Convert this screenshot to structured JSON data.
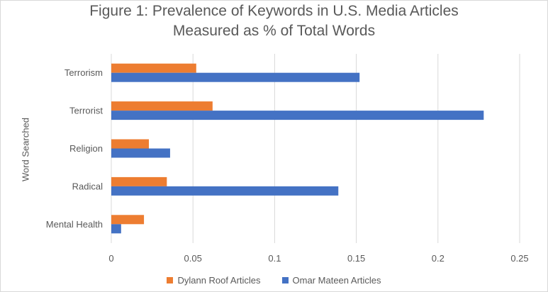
{
  "chart_data": {
    "type": "bar",
    "orientation": "horizontal",
    "title_lines": [
      "Figure 1: Prevalence of Keywords in U.S. Media Articles",
      "Measured as % of Total Words"
    ],
    "ylabel": "Word Searched",
    "xlabel": "",
    "categories": [
      "Terrorism",
      "Terrorist",
      "Religion",
      "Radical",
      "Mental Health"
    ],
    "series": [
      {
        "name": "Dylann Roof Articles",
        "color": "#ed7d31",
        "values": [
          0.052,
          0.062,
          0.023,
          0.034,
          0.02
        ]
      },
      {
        "name": "Omar Mateen Articles",
        "color": "#4472c4",
        "values": [
          0.152,
          0.228,
          0.036,
          0.139,
          0.006
        ]
      }
    ],
    "xlim": [
      0,
      0.25
    ],
    "xticks": [
      0,
      0.05,
      0.1,
      0.15,
      0.2,
      0.25
    ],
    "xtick_labels": [
      "0",
      "0.05",
      "0.1",
      "0.15",
      "0.2",
      "0.25"
    ],
    "grid": true,
    "legend_position": "bottom"
  }
}
